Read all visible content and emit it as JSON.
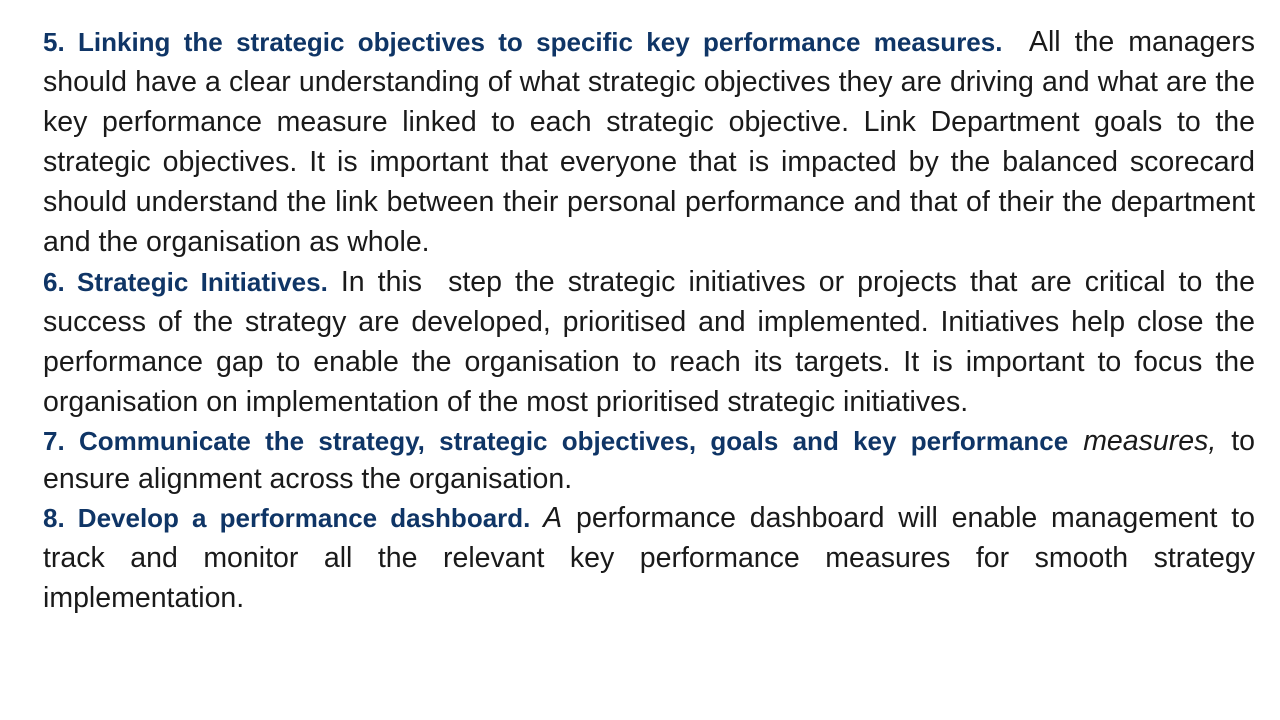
{
  "paragraphs": {
    "p5": {
      "heading": "5. Linking the strategic objectives to specific key performance measures.",
      "body": "  All the managers should have a clear understanding of what strategic objectives they are driving and what are the key performance measure linked to each strategic objective. Link Department goals to the strategic objectives. It is important that everyone that is impacted by the balanced scorecard should understand the link between their personal performance and that of their the department and the organisation as whole."
    },
    "p6": {
      "heading": "6. Strategic Initiatives.",
      "body": " In this  step the strategic initiatives or projects that are critical to the success of the strategy are developed, prioritised and implemented. Initiatives help close the performance gap to enable the organisation to reach its targets. It is important to focus the organisation on implementation of the most prioritised strategic initiatives."
    },
    "p7": {
      "heading": "7. Communicate the strategy, strategic objectives, goals and key performance",
      "emphasis": " measures,",
      "body": " to ensure alignment across the organisation."
    },
    "p8": {
      "heading": "8. Develop a performance dashboard.",
      "emphasis": " A",
      "body": " performance dashboard will enable management to track and monitor all the relevant key performance measures for smooth strategy implementation."
    }
  },
  "colors": {
    "heading": "#0f3566",
    "body": "#1a1a1a",
    "background": "#ffffff"
  }
}
